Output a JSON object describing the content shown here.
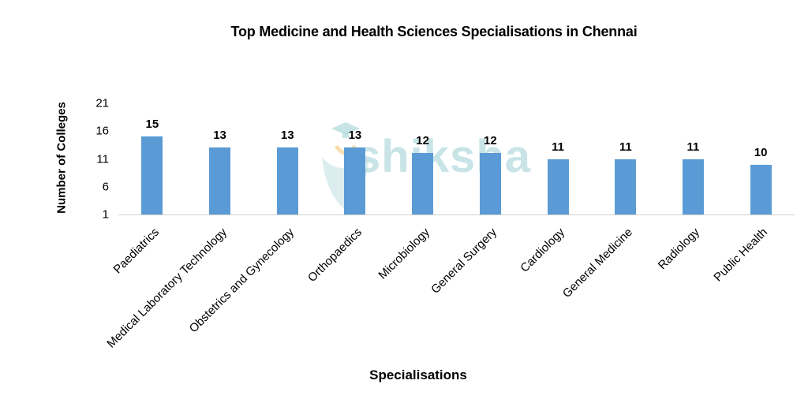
{
  "chart_data": {
    "type": "bar",
    "title": "Top Medicine and Health Sciences Specialisations in Chennai",
    "xlabel": "Specialisations",
    "ylabel": "Number of Colleges",
    "categories": [
      "Paediatrics",
      "Medical Laboratory Technology",
      "Obstetrics and Gynecology",
      "Orthopaedics",
      "Microbiology",
      "General Surgery",
      "Cardiology",
      "General Medicine",
      "Radiology",
      "Public Health"
    ],
    "values": [
      15,
      13,
      13,
      13,
      12,
      12,
      11,
      11,
      11,
      10
    ],
    "yticks": [
      1,
      6,
      11,
      16,
      21
    ],
    "ylim": [
      1,
      21
    ],
    "grid": false,
    "legend": null,
    "data_labels": true,
    "bar_color": "#5b9bd5"
  },
  "watermark": {
    "text": "shiksha"
  }
}
